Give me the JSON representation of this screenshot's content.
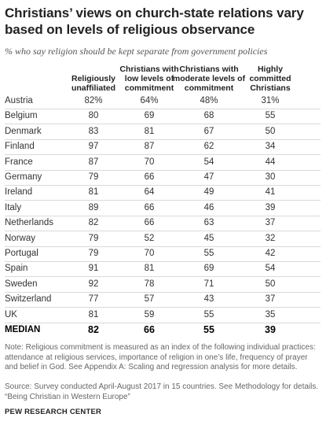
{
  "title": "Christians’ views on church-state relations vary based on levels of religious observance",
  "subtitle": "% who say religion should be kept separate from government policies",
  "chart_data": {
    "type": "table",
    "columns": [
      "Religiously unaffiliated",
      "Christians with low levels of commitment",
      "Christians with moderate levels of commitment",
      "Highly committed Christians"
    ],
    "column_lines": [
      [
        "Religiously",
        "unaffiliated"
      ],
      [
        "Christians with",
        "low levels of",
        "commitment"
      ],
      [
        "Christians with",
        "moderate levels of",
        "commitment"
      ],
      [
        "Highly",
        "committed",
        "Christians"
      ]
    ],
    "rows": [
      {
        "label": "Austria",
        "values": [
          "82%",
          "64%",
          "48%",
          "31%"
        ]
      },
      {
        "label": "Belgium",
        "values": [
          "80",
          "69",
          "68",
          "55"
        ]
      },
      {
        "label": "Denmark",
        "values": [
          "83",
          "81",
          "67",
          "50"
        ]
      },
      {
        "label": "Finland",
        "values": [
          "97",
          "87",
          "62",
          "34"
        ]
      },
      {
        "label": "France",
        "values": [
          "87",
          "70",
          "54",
          "44"
        ]
      },
      {
        "label": "Germany",
        "values": [
          "79",
          "66",
          "47",
          "30"
        ]
      },
      {
        "label": "Ireland",
        "values": [
          "81",
          "64",
          "49",
          "41"
        ]
      },
      {
        "label": "Italy",
        "values": [
          "89",
          "66",
          "46",
          "39"
        ]
      },
      {
        "label": "Netherlands",
        "values": [
          "82",
          "66",
          "63",
          "37"
        ]
      },
      {
        "label": "Norway",
        "values": [
          "79",
          "52",
          "45",
          "32"
        ]
      },
      {
        "label": "Portugal",
        "values": [
          "79",
          "70",
          "55",
          "42"
        ]
      },
      {
        "label": "Spain",
        "values": [
          "91",
          "81",
          "69",
          "54"
        ]
      },
      {
        "label": "Sweden",
        "values": [
          "92",
          "78",
          "71",
          "50"
        ]
      },
      {
        "label": "Switzerland",
        "values": [
          "77",
          "57",
          "43",
          "37"
        ]
      },
      {
        "label": "UK",
        "values": [
          "81",
          "59",
          "55",
          "35"
        ]
      }
    ],
    "median": {
      "label": "MEDIAN",
      "values": [
        "82",
        "66",
        "55",
        "39"
      ]
    }
  },
  "note": "Note: Religious commitment is measured as an index of the following individual practices: attendance at religious services, importance of religion in one’s life, frequency of prayer and belief in God. See Appendix A: Scaling and regression analysis for more details.",
  "source": "Source: Survey conducted April-August 2017 in 15 countries. See Methodology for details. “Being Christian in Western Europe”",
  "brand": "PEW RESEARCH CENTER"
}
